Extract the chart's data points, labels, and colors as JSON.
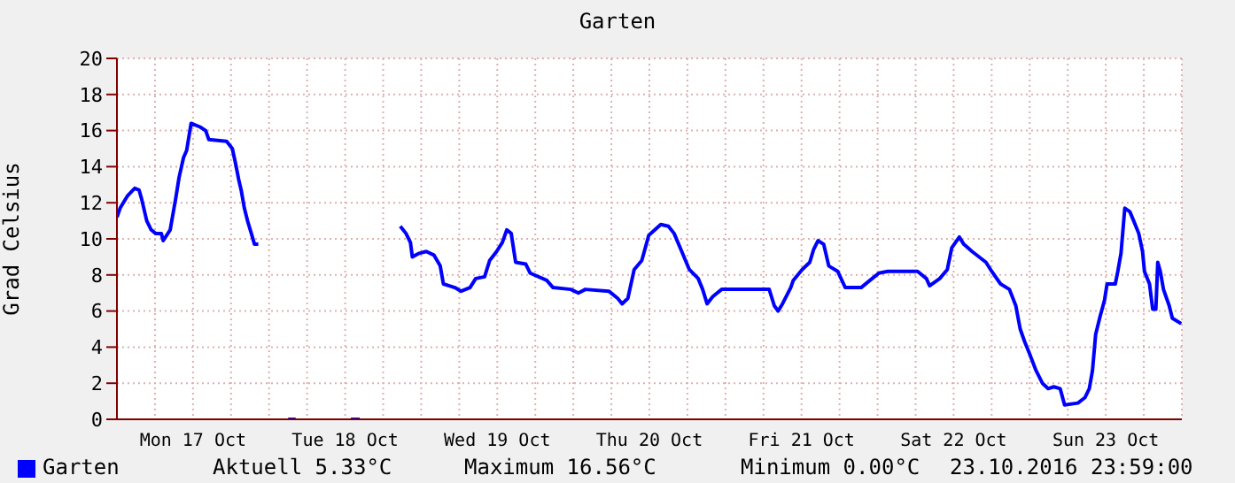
{
  "chart_data": {
    "type": "line",
    "title": "Garten",
    "ylabel": "Grad Celsius",
    "xlim": [
      "2016-10-17T00:00",
      "2016-10-24T00:00"
    ],
    "xticks": [
      {
        "value": "2016-10-17T06:00",
        "label": null
      },
      {
        "value": "2016-10-17T12:00",
        "label": "Mon 17 Oct"
      },
      {
        "value": "2016-10-17T18:00",
        "label": null
      },
      {
        "value": "2016-10-18T00:00",
        "label": null
      },
      {
        "value": "2016-10-18T06:00",
        "label": null
      },
      {
        "value": "2016-10-18T12:00",
        "label": "Tue 18 Oct"
      },
      {
        "value": "2016-10-18T18:00",
        "label": null
      },
      {
        "value": "2016-10-19T00:00",
        "label": null
      },
      {
        "value": "2016-10-19T06:00",
        "label": null
      },
      {
        "value": "2016-10-19T12:00",
        "label": "Wed 19 Oct"
      },
      {
        "value": "2016-10-19T18:00",
        "label": null
      },
      {
        "value": "2016-10-20T00:00",
        "label": null
      },
      {
        "value": "2016-10-20T06:00",
        "label": null
      },
      {
        "value": "2016-10-20T12:00",
        "label": "Thu 20 Oct"
      },
      {
        "value": "2016-10-20T18:00",
        "label": null
      },
      {
        "value": "2016-10-21T00:00",
        "label": null
      },
      {
        "value": "2016-10-21T06:00",
        "label": null
      },
      {
        "value": "2016-10-21T12:00",
        "label": "Fri 21 Oct"
      },
      {
        "value": "2016-10-21T18:00",
        "label": null
      },
      {
        "value": "2016-10-22T00:00",
        "label": null
      },
      {
        "value": "2016-10-22T06:00",
        "label": null
      },
      {
        "value": "2016-10-22T12:00",
        "label": "Sat 22 Oct"
      },
      {
        "value": "2016-10-22T18:00",
        "label": null
      },
      {
        "value": "2016-10-23T00:00",
        "label": null
      },
      {
        "value": "2016-10-23T06:00",
        "label": null
      },
      {
        "value": "2016-10-23T12:00",
        "label": "Sun 23 Oct"
      },
      {
        "value": "2016-10-23T18:00",
        "label": null
      }
    ],
    "ylim": [
      0,
      20
    ],
    "yticks": [
      0,
      2,
      4,
      6,
      8,
      10,
      12,
      14,
      16,
      18,
      20
    ],
    "grid": true,
    "legend": "bottom left",
    "marker": "none",
    "line_style": "solid",
    "annotations": [
      "Aktuell 5.33°C",
      "Maximum 16.56°C",
      "Minimum 0.00°C",
      "23.10.2016 23:59:00"
    ],
    "series": [
      {
        "name": "Garten",
        "color": "#0000ff",
        "x": [
          "2016-10-17T00:00",
          "2016-10-17T00:30",
          "2016-10-17T01:00",
          "2016-10-17T01:42",
          "2016-10-17T02:48",
          "2016-10-17T03:30",
          "2016-10-17T03:54",
          "2016-10-17T04:42",
          "2016-10-17T05:24",
          "2016-10-17T06:06",
          "2016-10-17T07:00",
          "2016-10-17T07:18",
          "2016-10-17T08:24",
          "2016-10-17T08:48",
          "2016-10-17T09:18",
          "2016-10-17T09:48",
          "2016-10-17T10:30",
          "2016-10-17T11:00",
          "2016-10-17T11:42",
          "2016-10-17T13:06",
          "2016-10-17T14:00",
          "2016-10-17T14:30",
          "2016-10-17T17:18",
          "2016-10-17T18:12",
          "2016-10-17T18:42",
          "2016-10-17T19:12",
          "2016-10-17T19:36",
          "2016-10-17T20:06",
          "2016-10-17T20:36",
          "2016-10-17T21:12",
          "2016-10-17T21:42",
          "2016-10-17T22:18",
          "2016-10-17T23:00",
          "2016-10-18T03:00",
          "2016-10-18T04:12",
          "2016-10-18T06:00",
          "2016-10-18T12:54",
          "2016-10-18T14:18",
          "2016-10-18T16:00",
          "2016-10-18T20:42",
          "2016-10-18T21:36",
          "2016-10-18T22:18",
          "2016-10-18T22:36",
          "2016-10-18T23:42",
          "2016-10-19T00:48",
          "2016-10-19T02:00",
          "2016-10-19T03:00",
          "2016-10-19T03:30",
          "2016-10-19T05:18",
          "2016-10-19T06:18",
          "2016-10-19T07:42",
          "2016-10-19T08:36",
          "2016-10-19T10:00",
          "2016-10-19T10:48",
          "2016-10-19T11:54",
          "2016-10-19T12:48",
          "2016-10-19T13:30",
          "2016-10-19T14:12",
          "2016-10-19T14:54",
          "2016-10-19T16:30",
          "2016-10-19T17:12",
          "2016-10-19T19:48",
          "2016-10-19T20:48",
          "2016-10-19T23:36",
          "2016-10-20T00:48",
          "2016-10-20T01:54",
          "2016-10-20T05:36",
          "2016-10-20T07:00",
          "2016-10-20T07:42",
          "2016-10-20T08:36",
          "2016-10-20T09:36",
          "2016-10-20T10:48",
          "2016-10-20T11:54",
          "2016-10-20T13:48",
          "2016-10-20T15:00",
          "2016-10-20T15:54",
          "2016-10-20T17:06",
          "2016-10-20T18:18",
          "2016-10-20T19:42",
          "2016-10-20T20:24",
          "2016-10-20T21:06",
          "2016-10-20T22:00",
          "2016-10-20T23:24",
          "2016-10-21T01:18",
          "2016-10-21T06:54",
          "2016-10-21T07:42",
          "2016-10-21T08:18",
          "2016-10-21T09:00",
          "2016-10-21T10:18",
          "2016-10-21T10:42",
          "2016-10-21T12:06",
          "2016-10-21T13:18",
          "2016-10-21T13:54",
          "2016-10-21T14:36",
          "2016-10-21T15:30",
          "2016-10-21T16:18",
          "2016-10-21T17:42",
          "2016-10-21T18:54",
          "2016-10-21T21:24",
          "2016-10-21T22:48",
          "2016-10-22T00:12",
          "2016-10-22T01:36",
          "2016-10-22T06:18",
          "2016-10-22T07:42",
          "2016-10-22T08:12",
          "2016-10-22T09:48",
          "2016-10-22T11:00",
          "2016-10-22T11:42",
          "2016-10-22T12:54",
          "2016-10-22T13:36",
          "2016-10-22T14:54",
          "2016-10-22T17:06",
          "2016-10-22T18:00",
          "2016-10-22T19:24",
          "2016-10-22T20:48",
          "2016-10-22T21:48",
          "2016-10-22T22:30",
          "2016-10-22T23:12",
          "2016-10-22T23:54",
          "2016-10-23T01:00",
          "2016-10-23T02:00",
          "2016-10-23T02:54",
          "2016-10-23T03:48",
          "2016-10-23T04:48",
          "2016-10-23T05:30",
          "2016-10-23T07:36",
          "2016-10-23T08:42",
          "2016-10-23T09:24",
          "2016-10-23T09:54",
          "2016-10-23T10:24",
          "2016-10-23T11:06",
          "2016-10-23T11:48",
          "2016-10-23T12:12",
          "2016-10-23T13:30",
          "2016-10-23T13:54",
          "2016-10-23T14:24",
          "2016-10-23T15:00",
          "2016-10-23T15:48",
          "2016-10-23T16:24",
          "2016-10-23T17:12",
          "2016-10-23T17:48",
          "2016-10-23T18:06",
          "2016-10-23T18:54",
          "2016-10-23T19:24",
          "2016-10-23T19:54",
          "2016-10-23T20:12",
          "2016-10-23T20:36",
          "2016-10-23T21:06",
          "2016-10-23T22:00",
          "2016-10-23T22:30",
          "2016-10-23T23:54"
        ],
        "values": [
          11.2,
          11.7,
          12.0,
          12.4,
          12.8,
          12.7,
          12.2,
          11.0,
          10.5,
          10.3,
          10.3,
          9.9,
          10.5,
          11.3,
          12.3,
          13.4,
          14.5,
          14.9,
          16.4,
          16.2,
          16.0,
          15.5,
          15.4,
          15.0,
          14.2,
          13.3,
          12.7,
          11.7,
          11.0,
          10.3,
          9.7,
          9.7,
          null,
          0,
          0,
          null,
          0,
          0,
          null,
          10.7,
          10.3,
          9.8,
          9.0,
          9.2,
          9.3,
          9.1,
          8.5,
          7.5,
          7.3,
          7.1,
          7.3,
          7.8,
          7.9,
          8.8,
          9.3,
          9.8,
          10.5,
          10.3,
          8.7,
          8.6,
          8.1,
          7.7,
          7.3,
          7.2,
          7.0,
          7.2,
          7.1,
          6.7,
          6.4,
          6.7,
          8.3,
          8.8,
          10.2,
          10.8,
          10.7,
          10.3,
          9.3,
          8.3,
          7.8,
          7.2,
          6.4,
          6.8,
          7.2,
          7.2,
          7.2,
          6.3,
          6.0,
          6.4,
          7.3,
          7.7,
          8.3,
          8.7,
          9.4,
          9.9,
          9.7,
          8.5,
          8.2,
          7.3,
          7.3,
          7.7,
          8.1,
          8.2,
          8.2,
          7.8,
          7.4,
          7.8,
          8.3,
          9.5,
          10.1,
          9.7,
          9.3,
          8.7,
          8.2,
          7.5,
          7.2,
          6.3,
          5.0,
          4.3,
          3.7,
          2.7,
          2.0,
          1.7,
          1.8,
          1.7,
          0.8,
          0.9,
          1.2,
          1.7,
          2.7,
          4.7,
          5.7,
          6.6,
          7.5,
          7.5,
          8.2,
          9.2,
          11.7,
          11.5,
          11.0,
          10.3,
          9.3,
          8.2,
          7.5,
          6.1,
          6.1,
          8.7,
          8.2,
          7.2,
          6.3,
          5.6,
          5.3
        ]
      }
    ]
  }
}
